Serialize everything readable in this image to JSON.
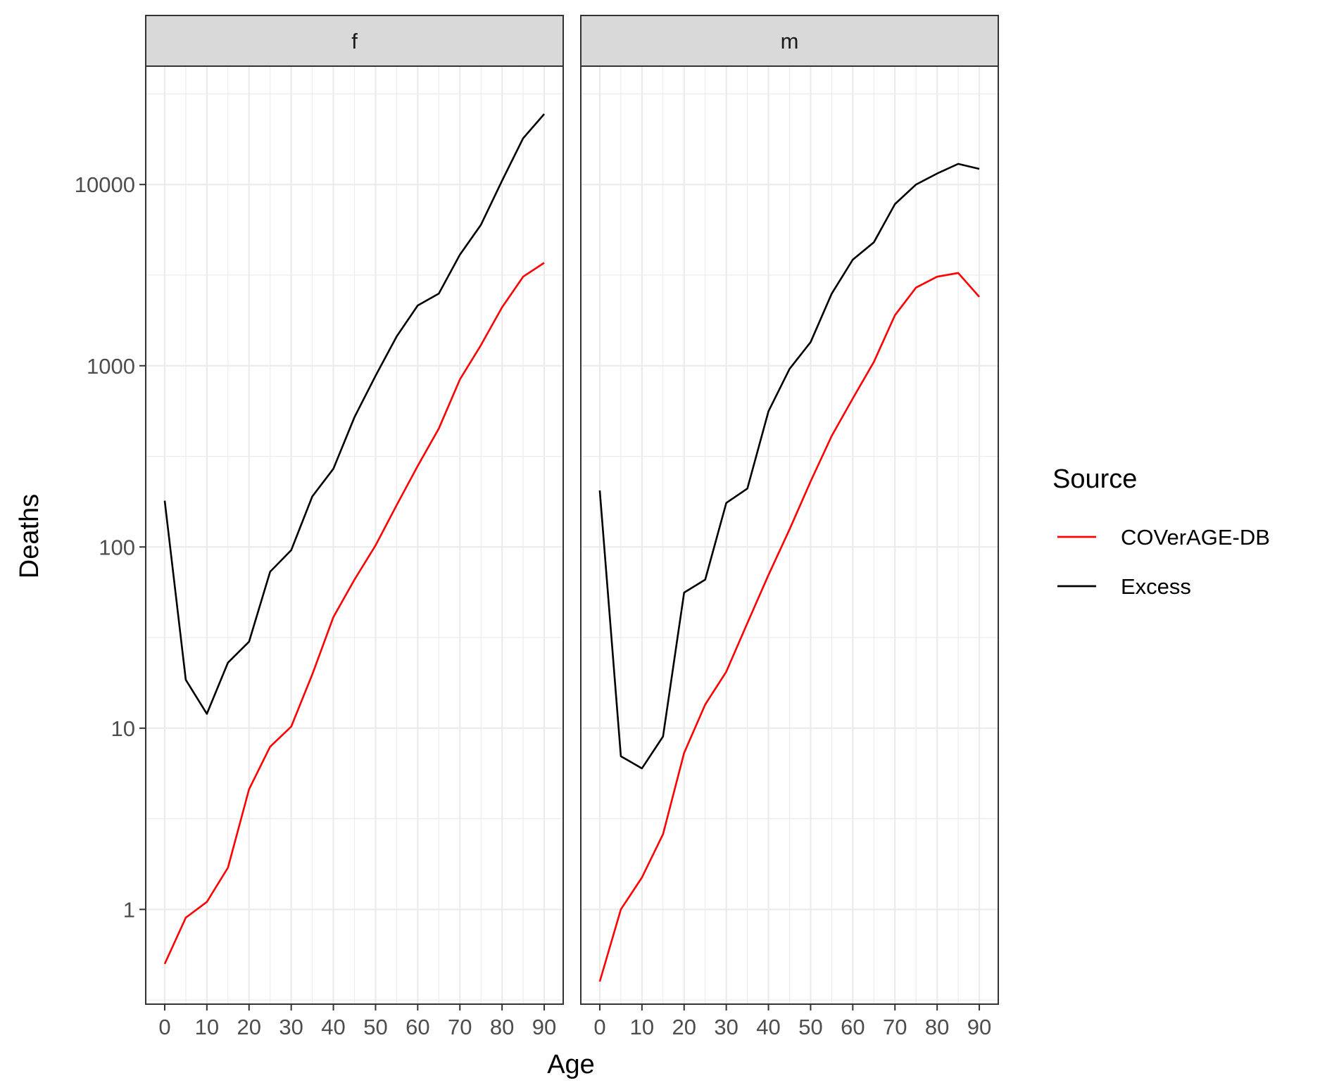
{
  "chart_data": {
    "type": "line",
    "xlabel": "Age",
    "ylabel": "Deaths",
    "y_scale": "log10",
    "ylim": [
      0.3,
      45000
    ],
    "xlim": [
      -4.5,
      94.5
    ],
    "x_ticks": [
      0,
      10,
      20,
      30,
      40,
      50,
      60,
      70,
      80,
      90
    ],
    "y_ticks": [
      1,
      10,
      100,
      1000,
      10000
    ],
    "y_tick_labels": [
      "1",
      "10",
      "100",
      "1000",
      "10000"
    ],
    "grid": true,
    "legend": {
      "title": "Source",
      "position": "right",
      "entries": [
        {
          "label": "COVerAGE-DB",
          "color": "#ff0000"
        },
        {
          "label": "Excess",
          "color": "#000000"
        }
      ]
    },
    "facets": [
      {
        "label": "f",
        "x": [
          0,
          5,
          10,
          15,
          20,
          25,
          30,
          35,
          40,
          45,
          50,
          55,
          60,
          65,
          70,
          75,
          80,
          85,
          90
        ],
        "series": [
          {
            "name": "COVerAGE-DB",
            "color": "#ff0000",
            "values": [
              0.5,
              0.9,
              1.1,
              1.7,
              4.6,
              7.9,
              10.2,
              19.8,
              41,
              66,
              102,
              170,
              280,
              450,
              840,
              1300,
              2100,
              3100,
              3700
            ]
          },
          {
            "name": "Excess",
            "color": "#000000",
            "values": [
              180,
              18.5,
              12,
              23,
              30,
              73,
              96,
              190,
              270,
              520,
              880,
              1450,
              2150,
              2500,
              4100,
              6000,
              10500,
              18000,
              24500
            ]
          }
        ]
      },
      {
        "label": "m",
        "x": [
          0,
          5,
          10,
          15,
          20,
          25,
          30,
          35,
          40,
          45,
          50,
          55,
          60,
          65,
          70,
          75,
          80,
          85,
          90
        ],
        "series": [
          {
            "name": "COVerAGE-DB",
            "color": "#ff0000",
            "values": [
              0.4,
              1.0,
              1.5,
              2.6,
              7.3,
              13.5,
              20.5,
              38,
              70,
              125,
              230,
              410,
              660,
              1050,
              1900,
              2700,
              3100,
              3250,
              2400
            ]
          },
          {
            "name": "Excess",
            "color": "#000000",
            "values": [
              205,
              7,
              6,
              9,
              56,
              66,
              175,
              210,
              560,
              960,
              1350,
              2500,
              3850,
              4800,
              7800,
              10000,
              11500,
              13000,
              12200
            ]
          }
        ]
      }
    ]
  }
}
